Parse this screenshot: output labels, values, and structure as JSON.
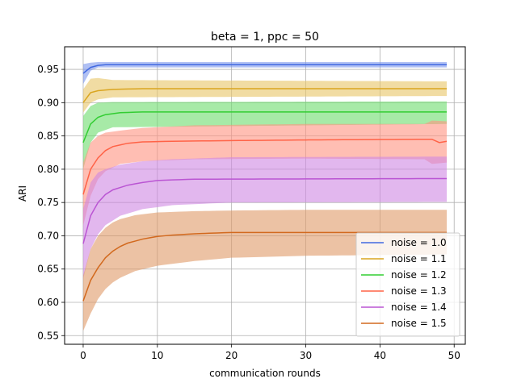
{
  "chart_data": {
    "type": "line",
    "title": "beta = 1, ppc = 50",
    "xlabel": "communication rounds",
    "ylabel": "ARI",
    "xlim": [
      -2.5,
      51.5
    ],
    "ylim": [
      0.537,
      0.984
    ],
    "xticks": [
      0,
      10,
      20,
      30,
      40,
      50
    ],
    "xtick_labels": [
      "0",
      "10",
      "20",
      "30",
      "40",
      "50"
    ],
    "yticks": [
      0.55,
      0.6,
      0.65,
      0.7,
      0.75,
      0.8,
      0.85,
      0.9,
      0.95
    ],
    "ytick_labels": [
      "0.55",
      "0.60",
      "0.65",
      "0.70",
      "0.75",
      "0.80",
      "0.85",
      "0.90",
      "0.95"
    ],
    "grid": true,
    "legend_position": "lower-right",
    "x_range": [
      0,
      49
    ],
    "band_opacity": 0.6,
    "series": [
      {
        "name": "noise = 1.0",
        "color": "#4169e1",
        "band_color": "#7b96ec",
        "knots": [
          [
            0,
            0.944
          ],
          [
            1,
            0.953
          ],
          [
            2,
            0.956
          ],
          [
            3,
            0.957
          ],
          [
            49,
            0.957
          ]
        ],
        "band": [
          [
            0,
            0.928,
            0.958
          ],
          [
            1,
            0.948,
            0.96
          ],
          [
            2,
            0.953,
            0.961
          ],
          [
            49,
            0.953,
            0.961
          ]
        ]
      },
      {
        "name": "noise = 1.1",
        "color": "#daa520",
        "band_color": "#e8c466",
        "knots": [
          [
            0,
            0.9
          ],
          [
            1,
            0.915
          ],
          [
            2,
            0.918
          ],
          [
            4,
            0.92
          ],
          [
            8,
            0.921
          ],
          [
            49,
            0.921
          ]
        ],
        "band": [
          [
            0,
            0.885,
            0.92
          ],
          [
            1,
            0.9,
            0.936
          ],
          [
            2,
            0.905,
            0.937
          ],
          [
            4,
            0.908,
            0.934
          ],
          [
            49,
            0.91,
            0.932
          ]
        ]
      },
      {
        "name": "noise = 1.2",
        "color": "#32cd32",
        "band_color": "#6ddc6d",
        "knots": [
          [
            0,
            0.84
          ],
          [
            1,
            0.868
          ],
          [
            2,
            0.878
          ],
          [
            3,
            0.882
          ],
          [
            5,
            0.885
          ],
          [
            8,
            0.886
          ],
          [
            49,
            0.886
          ]
        ],
        "band": [
          [
            0,
            0.8,
            0.88
          ],
          [
            1,
            0.84,
            0.895
          ],
          [
            2,
            0.855,
            0.9
          ],
          [
            4,
            0.863,
            0.901
          ],
          [
            49,
            0.868,
            0.902
          ]
        ]
      },
      {
        "name": "noise = 1.3",
        "color": "#ff6347",
        "band_color": "#ff9380",
        "knots": [
          [
            0,
            0.762
          ],
          [
            1,
            0.8
          ],
          [
            2,
            0.817
          ],
          [
            3,
            0.828
          ],
          [
            4,
            0.834
          ],
          [
            6,
            0.839
          ],
          [
            8,
            0.841
          ],
          [
            12,
            0.842
          ],
          [
            20,
            0.843
          ],
          [
            30,
            0.844
          ],
          [
            46,
            0.845
          ],
          [
            47,
            0.845
          ],
          [
            48,
            0.84
          ],
          [
            49,
            0.842
          ]
        ],
        "band": [
          [
            0,
            0.715,
            0.81
          ],
          [
            1,
            0.76,
            0.84
          ],
          [
            2,
            0.785,
            0.85
          ],
          [
            3,
            0.797,
            0.855
          ],
          [
            5,
            0.808,
            0.858
          ],
          [
            8,
            0.812,
            0.862
          ],
          [
            15,
            0.815,
            0.866
          ],
          [
            30,
            0.816,
            0.868
          ],
          [
            46,
            0.815,
            0.868
          ],
          [
            47,
            0.808,
            0.873
          ],
          [
            49,
            0.81,
            0.872
          ]
        ]
      },
      {
        "name": "noise = 1.4",
        "color": "#ba55d3",
        "band_color": "#cf87e2",
        "knots": [
          [
            0,
            0.688
          ],
          [
            1,
            0.73
          ],
          [
            2,
            0.75
          ],
          [
            3,
            0.762
          ],
          [
            4,
            0.769
          ],
          [
            6,
            0.776
          ],
          [
            8,
            0.78
          ],
          [
            10,
            0.783
          ],
          [
            12,
            0.784
          ],
          [
            15,
            0.785
          ],
          [
            49,
            0.786
          ]
        ],
        "band": [
          [
            0,
            0.635,
            0.74
          ],
          [
            1,
            0.68,
            0.78
          ],
          [
            2,
            0.702,
            0.795
          ],
          [
            3,
            0.716,
            0.8
          ],
          [
            5,
            0.73,
            0.807
          ],
          [
            8,
            0.74,
            0.812
          ],
          [
            12,
            0.746,
            0.815
          ],
          [
            20,
            0.75,
            0.818
          ],
          [
            49,
            0.751,
            0.819
          ]
        ]
      },
      {
        "name": "noise = 1.5",
        "color": "#d2691e",
        "band_color": "#e09a68",
        "knots": [
          [
            0,
            0.602
          ],
          [
            1,
            0.633
          ],
          [
            2,
            0.652
          ],
          [
            3,
            0.667
          ],
          [
            4,
            0.677
          ],
          [
            5,
            0.684
          ],
          [
            6,
            0.689
          ],
          [
            8,
            0.695
          ],
          [
            10,
            0.699
          ],
          [
            12,
            0.701
          ],
          [
            15,
            0.703
          ],
          [
            20,
            0.705
          ],
          [
            49,
            0.705
          ]
        ],
        "band": [
          [
            0,
            0.557,
            0.64
          ],
          [
            1,
            0.583,
            0.68
          ],
          [
            2,
            0.605,
            0.7
          ],
          [
            3,
            0.62,
            0.712
          ],
          [
            4,
            0.63,
            0.72
          ],
          [
            5,
            0.637,
            0.725
          ],
          [
            7,
            0.647,
            0.731
          ],
          [
            10,
            0.655,
            0.735
          ],
          [
            15,
            0.662,
            0.737
          ],
          [
            20,
            0.667,
            0.738
          ],
          [
            30,
            0.67,
            0.739
          ],
          [
            49,
            0.672,
            0.739
          ]
        ]
      }
    ]
  }
}
